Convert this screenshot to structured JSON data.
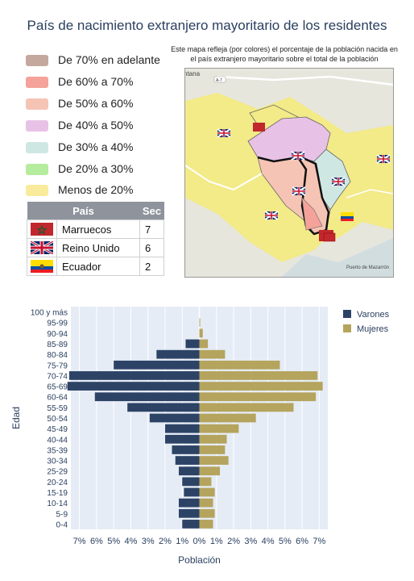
{
  "title": "País de nacimiento extranjero mayoritario de los residentes",
  "map_note": "Este mapa refleja (por colores) el  porcentaje de la población nacida en  el país extranjero mayoritario sobre el  total de la población",
  "map_labels": {
    "city": "Puerto de Mazarrón",
    "road": "A-7",
    "place_partial": "ntana"
  },
  "legend": [
    {
      "label": "De 70% en adelante",
      "color": "#c4a89e"
    },
    {
      "label": "De 60% a 70%",
      "color": "#f4a29a"
    },
    {
      "label": "De 50% a 60%",
      "color": "#f6c4b4"
    },
    {
      "label": "De 40% a 50%",
      "color": "#e8c2e6"
    },
    {
      "label": "De 30% a 40%",
      "color": "#cfe7e3"
    },
    {
      "label": "De 20% a 30%",
      "color": "#b5ec9e"
    },
    {
      "label": "Menos de 20%",
      "color": "#f8ec9c"
    }
  ],
  "table": {
    "headers": [
      "País",
      "Sec"
    ],
    "rows": [
      {
        "flag": "morocco-flag",
        "country": "Marruecos",
        "sec": "7"
      },
      {
        "flag": "uk-flag",
        "country": "Reino Unido",
        "sec": "6"
      },
      {
        "flag": "ecuador-flag",
        "country": "Ecuador",
        "sec": "2"
      }
    ]
  },
  "chart_data": {
    "type": "bar",
    "orientation": "horizontal",
    "categories": [
      "0-4",
      "5-9",
      "10-14",
      "15-19",
      "20-24",
      "25-29",
      "30-34",
      "35-39",
      "40-44",
      "45-49",
      "50-54",
      "55-59",
      "60-64",
      "65-69",
      "70-74",
      "75-79",
      "80-84",
      "85-89",
      "90-94",
      "95-99",
      "100 y más"
    ],
    "series": [
      {
        "name": "Varones",
        "color": "#2d4366",
        "values": [
          1.0,
          1.2,
          1.2,
          0.9,
          1.0,
          1.2,
          1.4,
          1.6,
          2.0,
          2.0,
          2.9,
          4.2,
          6.1,
          7.7,
          7.6,
          5.0,
          2.5,
          0.8,
          0.0,
          0.0,
          0.0
        ]
      },
      {
        "name": "Mujeres",
        "color": "#b5a45d",
        "values": [
          0.8,
          0.9,
          0.8,
          0.9,
          0.7,
          1.2,
          1.7,
          1.5,
          1.6,
          2.3,
          3.3,
          5.5,
          6.8,
          7.2,
          6.9,
          4.7,
          1.5,
          0.5,
          0.2,
          0.05,
          0.0
        ]
      }
    ],
    "xlabel": "Población",
    "ylabel": "Edad",
    "xlim": [
      -7.5,
      7.5
    ],
    "xticks": [
      "7%",
      "6%",
      "5%",
      "4%",
      "3%",
      "2%",
      "1%",
      "0%",
      "1%",
      "2%",
      "3%",
      "4%",
      "5%",
      "6%",
      "7%"
    ],
    "grid": true,
    "legend_position": "top-right",
    "plot_bg": "#e5ecf6"
  }
}
